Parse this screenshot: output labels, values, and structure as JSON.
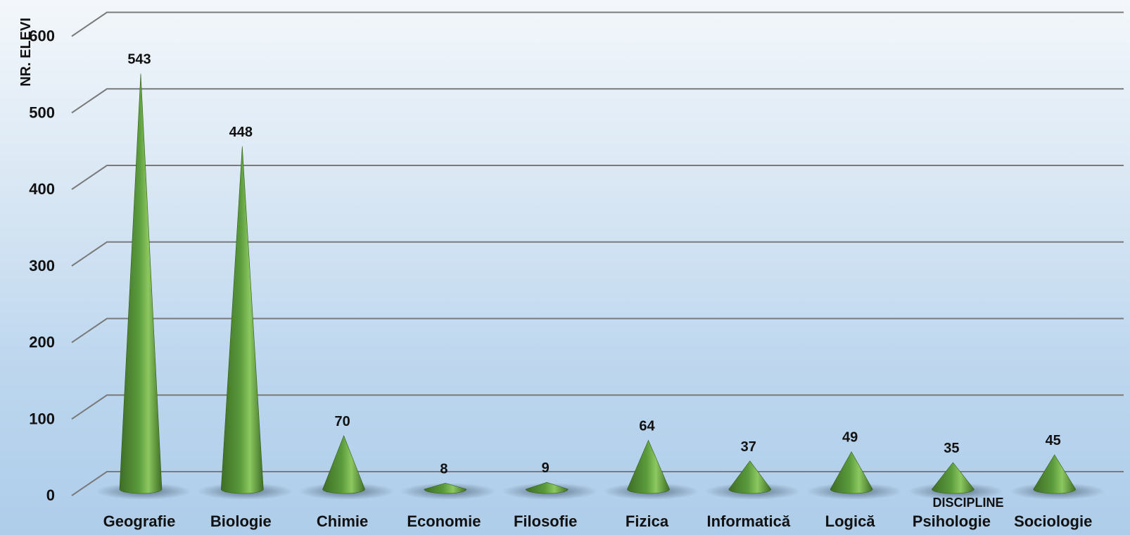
{
  "chart_data": {
    "type": "bar",
    "bar_shape": "cone",
    "categories": [
      "Geografie",
      "Biologie",
      "Chimie",
      "Economie",
      "Filosofie",
      "Fizica",
      "Informatică",
      "Logică",
      "Psihologie",
      "Sociologie"
    ],
    "values": [
      543,
      448,
      70,
      8,
      9,
      64,
      37,
      49,
      35,
      45
    ],
    "data_labels": [
      "543",
      "448",
      "70",
      "8",
      "9",
      "64",
      "37",
      "49",
      "35",
      "45"
    ],
    "xlabel": "DISCIPLINE",
    "ylabel": "NR. ELEVI",
    "ylim": [
      0,
      600
    ],
    "yticks": [
      "0",
      "100",
      "200",
      "300",
      "400",
      "500",
      "600"
    ],
    "grid": true,
    "colors": {
      "bar": "#5a9a3c",
      "bar_dark": "#3f6e25",
      "bar_light": "#8cc860",
      "grid": "#7a7a7a"
    }
  }
}
